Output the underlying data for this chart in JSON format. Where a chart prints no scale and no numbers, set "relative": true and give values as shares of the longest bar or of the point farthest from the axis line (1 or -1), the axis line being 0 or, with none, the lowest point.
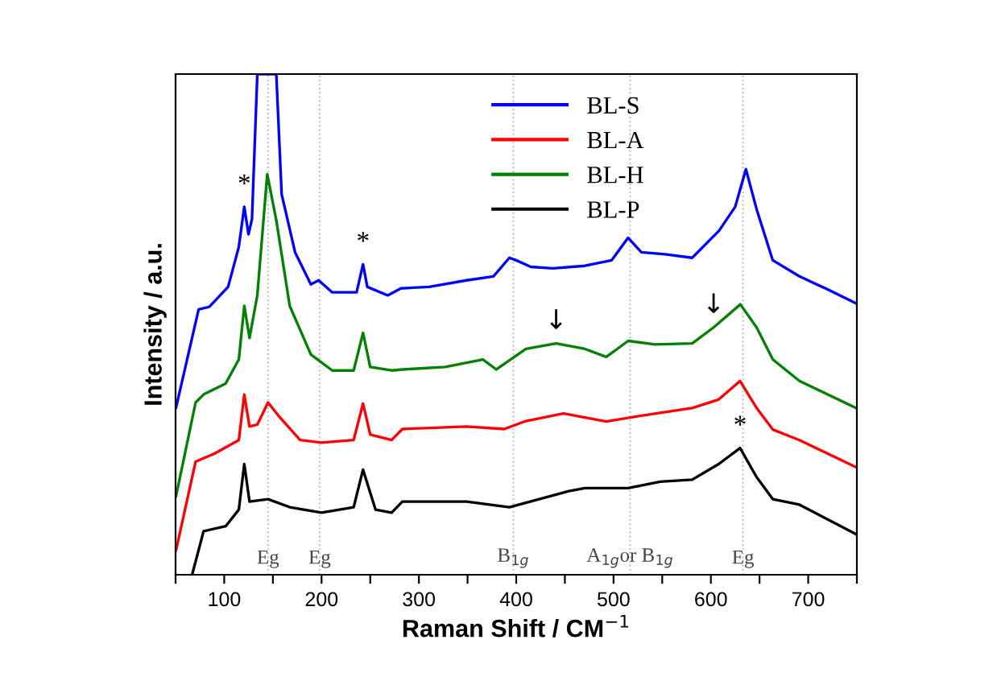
{
  "chart_data": {
    "type": "line",
    "relative": true,
    "xlabel": "Raman Shift / CM$^{−1}$",
    "ylabel": "Intensity / a.u.",
    "xlim": [
      50,
      750
    ],
    "xticks": [
      {
        "value": 50,
        "label": null
      },
      100,
      {
        "value": 150,
        "label": null
      },
      200,
      {
        "value": 250,
        "label": null
      },
      300,
      {
        "value": 350,
        "label": null
      },
      400,
      {
        "value": 450,
        "label": null
      },
      500,
      {
        "value": 550,
        "label": null
      },
      600,
      {
        "value": 650,
        "label": null
      },
      700,
      {
        "value": 750,
        "label": null
      }
    ],
    "legend": "top right",
    "grid": false,
    "series": [
      {
        "name": "BL-S",
        "color": "#0000ff",
        "x": [
          50.5,
          73.7,
          84.7,
          104,
          115,
          120.6,
          124.9,
          128.5,
          134,
          153.5,
          159,
          172.8,
          189,
          197,
          211,
          236,
          242.6,
          247,
          268,
          281.5,
          310.6,
          349,
          376.6,
          393,
          400,
          415,
          437.5,
          470.6,
          498,
          514.9,
          528.6,
          553,
          580.8,
          608.4,
          625,
          636,
          647,
          663.6,
          691,
          718.7,
          749
        ],
        "values": [
          0.334,
          0.53,
          0.535,
          0.575,
          0.655,
          0.735,
          0.68,
          0.71,
          1.0,
          1.0,
          0.76,
          0.644,
          0.58,
          0.588,
          0.564,
          0.564,
          0.62,
          0.575,
          0.558,
          0.572,
          0.575,
          0.588,
          0.596,
          0.633,
          0.628,
          0.615,
          0.612,
          0.617,
          0.628,
          0.673,
          0.644,
          0.64,
          0.633,
          0.687,
          0.735,
          0.81,
          0.73,
          0.628,
          0.596,
          0.571,
          0.542
        ]
      },
      {
        "name": "BL-A",
        "color": "#ff0000",
        "x": [
          50.5,
          70.6,
          90,
          115,
          120.6,
          126,
          134,
          145,
          156,
          178,
          200,
          233,
          242.6,
          250,
          272,
          283,
          349,
          387.7,
          410,
          448.5,
          492.5,
          526,
          580.8,
          608,
          630,
          647,
          663.6,
          691,
          749
        ],
        "values": [
          0.049,
          0.226,
          0.242,
          0.269,
          0.36,
          0.296,
          0.3,
          0.344,
          0.317,
          0.269,
          0.264,
          0.269,
          0.342,
          0.28,
          0.269,
          0.291,
          0.296,
          0.291,
          0.307,
          0.322,
          0.306,
          0.317,
          0.333,
          0.35,
          0.387,
          0.333,
          0.29,
          0.269,
          0.215
        ]
      },
      {
        "name": "BL-H",
        "color": "#008000",
        "x": [
          50.5,
          70.6,
          78.8,
          101.5,
          115,
          120.6,
          126,
          134,
          144.2,
          153.5,
          167.3,
          189,
          211,
          233,
          242.6,
          250,
          272,
          283,
          327,
          365.8,
          379.6,
          410,
          441,
          470.6,
          492.5,
          515,
          542.6,
          580.8,
          602.8,
          630.3,
          647,
          663.6,
          691,
          749
        ],
        "values": [
          0.157,
          0.344,
          0.36,
          0.382,
          0.43,
          0.537,
          0.473,
          0.558,
          0.8,
          0.708,
          0.537,
          0.44,
          0.408,
          0.408,
          0.483,
          0.415,
          0.408,
          0.41,
          0.415,
          0.43,
          0.41,
          0.451,
          0.462,
          0.451,
          0.435,
          0.467,
          0.46,
          0.462,
          0.494,
          0.54,
          0.494,
          0.43,
          0.387,
          0.333
        ]
      },
      {
        "name": "BL-P",
        "color": "#000000",
        "x": [
          67,
          78.8,
          101.5,
          115,
          120.6,
          126,
          145,
          167.3,
          200,
          233,
          242.6,
          255.5,
          272,
          283,
          349,
          393,
          454,
          470.6,
          515,
          548,
          580.8,
          608,
          630,
          647,
          663.6,
          691,
          749
        ],
        "values": [
          0.0,
          0.087,
          0.097,
          0.13,
          0.221,
          0.146,
          0.151,
          0.135,
          0.124,
          0.135,
          0.21,
          0.13,
          0.124,
          0.146,
          0.146,
          0.135,
          0.167,
          0.173,
          0.173,
          0.186,
          0.19,
          0.221,
          0.253,
          0.195,
          0.151,
          0.14,
          0.081
        ]
      }
    ],
    "ref_lines": [
      {
        "axis": "x",
        "value": 145,
        "label": "Eg",
        "color": "#bbbbbb",
        "line_style": "dotted"
      },
      {
        "axis": "x",
        "value": 198,
        "label": "Eg",
        "color": "#bbbbbb",
        "line_style": "dotted"
      },
      {
        "axis": "x",
        "value": 397,
        "label": "B$_{1g}$",
        "color": "#bbbbbb",
        "line_style": "dotted"
      },
      {
        "axis": "x",
        "value": 517,
        "label": "A$_{1g}$or B$_{1g}$",
        "color": "#bbbbbb",
        "line_style": "dotted"
      },
      {
        "axis": "x",
        "value": 633,
        "label": "Eg",
        "color": "#bbbbbb",
        "line_style": "dotted"
      }
    ],
    "annotations": [
      {
        "text": "*",
        "x": 120.6,
        "y": 0.735
      },
      {
        "text": "*",
        "x": 242.6,
        "y": 0.62
      },
      {
        "text": "*",
        "x": 630,
        "y": 0.253
      },
      {
        "text": "↓",
        "x": 441,
        "y": 0.462
      },
      {
        "text": "↓",
        "x": 602.8,
        "y": 0.494
      }
    ]
  }
}
